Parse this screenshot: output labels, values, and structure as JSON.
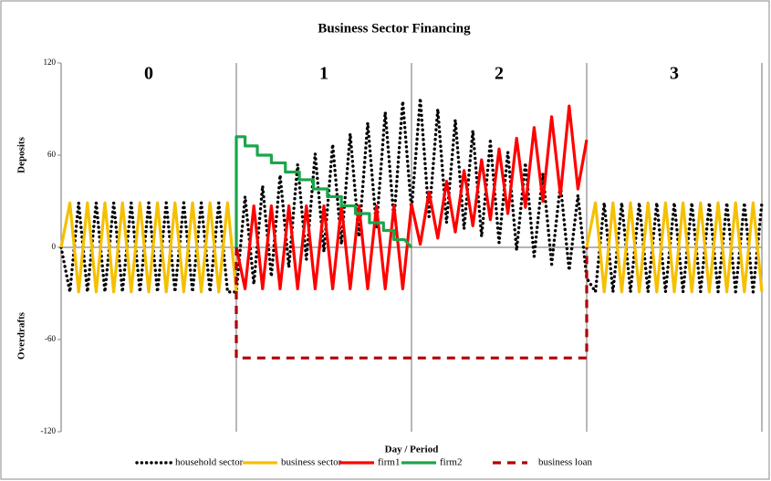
{
  "chart_data": {
    "type": "line",
    "title": "Business Sector Financing",
    "x_label": "Day / Period",
    "y_label_upper": "Deposits",
    "y_label_lower": "Overdrafts",
    "periods": [
      "0",
      "1",
      "2",
      "3"
    ],
    "xlim": [
      0,
      4
    ],
    "xticks": [
      0,
      1,
      2,
      3,
      4
    ],
    "ylim": [
      -120,
      120
    ],
    "yticks": [
      -120,
      -60,
      0,
      60,
      120
    ],
    "x": [
      0,
      0.05,
      0.1,
      0.15,
      0.2,
      0.25,
      0.3,
      0.35,
      0.4,
      0.45,
      0.5,
      0.55,
      0.6,
      0.65,
      0.7,
      0.75,
      0.8,
      0.85,
      0.9,
      0.95,
      1,
      1.05,
      1.1,
      1.15,
      1.2,
      1.25,
      1.3,
      1.35,
      1.4,
      1.45,
      1.5,
      1.55,
      1.6,
      1.65,
      1.7,
      1.75,
      1.8,
      1.85,
      1.9,
      1.95,
      2,
      2.05,
      2.1,
      2.15,
      2.2,
      2.25,
      2.3,
      2.35,
      2.4,
      2.45,
      2.5,
      2.55,
      2.6,
      2.65,
      2.7,
      2.75,
      2.8,
      2.85,
      2.9,
      2.95,
      3,
      3.05,
      3.1,
      3.15,
      3.2,
      3.25,
      3.3,
      3.35,
      3.4,
      3.45,
      3.5,
      3.55,
      3.6,
      3.65,
      3.7,
      3.75,
      3.8,
      3.85,
      3.9,
      3.95,
      4
    ],
    "series": [
      {
        "name": "household sector",
        "color": "#000000",
        "dash": "dotted",
        "values": [
          0,
          -29,
          29,
          -29,
          29,
          -29,
          29,
          -29,
          29,
          -29,
          29,
          -29,
          29,
          -29,
          29,
          -29,
          29,
          -29,
          29,
          -29,
          -29,
          33,
          -24,
          40,
          -19,
          47,
          -13,
          54,
          -8,
          61,
          -3,
          67,
          2,
          74,
          7,
          81,
          13,
          88,
          18,
          95,
          24,
          97,
          20,
          90,
          16,
          83,
          12,
          76,
          7,
          69,
          3,
          62,
          -2,
          55,
          -6,
          48,
          -11,
          41,
          -15,
          34,
          -20,
          -29,
          29,
          -29,
          29,
          -29,
          29,
          -29,
          29,
          -29,
          29,
          -29,
          29,
          -29,
          29,
          -29,
          29,
          -29,
          29,
          -29,
          29
        ]
      },
      {
        "name": "business sector",
        "color": "#f5c000",
        "dash": "solid",
        "values": [
          0,
          29,
          -29,
          29,
          -29,
          29,
          -29,
          29,
          -29,
          29,
          -29,
          29,
          -29,
          29,
          -29,
          29,
          -29,
          29,
          -29,
          29,
          -29,
          null,
          null,
          null,
          null,
          null,
          null,
          null,
          null,
          null,
          null,
          null,
          null,
          null,
          null,
          null,
          null,
          null,
          null,
          null,
          null,
          null,
          null,
          null,
          null,
          null,
          null,
          null,
          null,
          null,
          null,
          null,
          null,
          null,
          null,
          null,
          null,
          null,
          null,
          null,
          0,
          29,
          -29,
          29,
          -29,
          29,
          -29,
          29,
          -29,
          29,
          -29,
          29,
          -29,
          29,
          -29,
          29,
          -29,
          29,
          -29,
          29,
          -29
        ]
      },
      {
        "name": "firm1",
        "color": "#ff0000",
        "dash": "solid",
        "values": [
          null,
          null,
          null,
          null,
          null,
          null,
          null,
          null,
          null,
          null,
          null,
          null,
          null,
          null,
          null,
          null,
          null,
          null,
          null,
          null,
          0,
          -27,
          27,
          -27,
          27,
          -27,
          27,
          -27,
          27,
          -27,
          27,
          -27,
          27,
          -27,
          27,
          -27,
          27,
          -27,
          27,
          -27,
          28,
          2,
          36,
          6,
          43,
          10,
          50,
          14,
          57,
          18,
          64,
          22,
          71,
          26,
          78,
          30,
          85,
          34,
          92,
          38,
          70,
          null,
          null,
          null,
          null,
          null,
          null,
          null,
          null,
          null,
          null,
          null,
          null,
          null,
          null,
          null,
          null,
          null,
          null,
          null,
          null
        ]
      },
      {
        "name": "firm2",
        "color": "#1aa64a",
        "dash": "solid",
        "x": [
          1,
          1,
          1.05,
          1.05,
          1.12,
          1.12,
          1.2,
          1.2,
          1.28,
          1.28,
          1.36,
          1.36,
          1.44,
          1.44,
          1.52,
          1.52,
          1.6,
          1.6,
          1.68,
          1.68,
          1.76,
          1.76,
          1.84,
          1.84,
          1.9,
          1.9,
          1.96,
          2
        ],
        "values": [
          0,
          72,
          72,
          66,
          66,
          60,
          60,
          55,
          55,
          49,
          49,
          44,
          44,
          38,
          38,
          33,
          33,
          27,
          27,
          22,
          22,
          16,
          16,
          11,
          11,
          5,
          5,
          0
        ]
      },
      {
        "name": "business loan",
        "color": "#b00000",
        "dash": "dashed",
        "x": [
          1,
          1,
          3,
          3
        ],
        "values": [
          0,
          -72,
          -72,
          0
        ]
      }
    ]
  }
}
